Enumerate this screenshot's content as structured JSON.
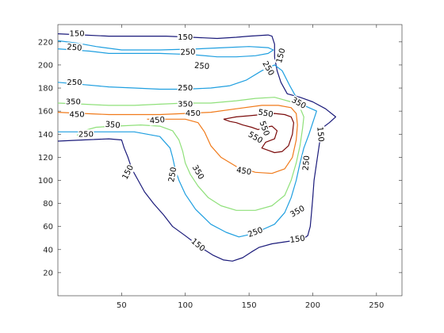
{
  "chart_data": {
    "type": "contour",
    "title": "",
    "xlabel": "",
    "ylabel": "",
    "xlim": [
      0,
      270
    ],
    "ylim": [
      0,
      235
    ],
    "grid": false,
    "x_ticks": [
      "50",
      "100",
      "150",
      "200",
      "250"
    ],
    "y_ticks": [
      "20",
      "40",
      "60",
      "80",
      "100",
      "120",
      "140",
      "160",
      "180",
      "200",
      "220"
    ],
    "levels": [
      150,
      250,
      350,
      450,
      550
    ],
    "level_colors": {
      "150": "#1a1a7a",
      "250": "#1f9fe0",
      "350": "#8fe07a",
      "450": "#f07a1a",
      "550": "#7a0a0a"
    },
    "contours": [
      {
        "level": 150,
        "paths": [
          [
            [
              0,
              134
            ],
            [
              20,
              135
            ],
            [
              40,
              136
            ],
            [
              50,
              135
            ],
            [
              52,
              128
            ],
            [
              55,
              120
            ],
            [
              58,
              110
            ],
            [
              63,
              100
            ],
            [
              68,
              90
            ],
            [
              75,
              80
            ],
            [
              83,
              70
            ],
            [
              90,
              60
            ],
            [
              100,
              52
            ],
            [
              112,
              42
            ],
            [
              122,
              35
            ],
            [
              130,
              31
            ],
            [
              137,
              30
            ],
            [
              145,
              33
            ],
            [
              152,
              38
            ],
            [
              158,
              42
            ],
            [
              168,
              45
            ],
            [
              180,
              47
            ],
            [
              192,
              49
            ],
            [
              196,
              52
            ],
            [
              198,
              60
            ],
            [
              199,
              72
            ],
            [
              200,
              85
            ],
            [
              201,
              100
            ],
            [
              203,
              115
            ],
            [
              205,
              130
            ],
            [
              207,
              145
            ],
            [
              213,
              150
            ],
            [
              218,
              155
            ],
            [
              210,
              162
            ],
            [
              200,
              168
            ],
            [
              190,
              172
            ],
            [
              180,
              175
            ],
            [
              175,
              185
            ],
            [
              172,
              195
            ],
            [
              170,
              207
            ],
            [
              170,
              218
            ],
            [
              168,
              225
            ],
            [
              165,
              226
            ],
            [
              150,
              225
            ],
            [
              140,
              224
            ],
            [
              125,
              223
            ],
            [
              105,
              224
            ],
            [
              85,
              225
            ],
            [
              60,
              225
            ],
            [
              40,
              225
            ],
            [
              20,
              226
            ],
            [
              0,
              227
            ]
          ]
        ],
        "labels": [
          {
            "text": "150",
            "x": 15,
            "y": 227,
            "angle": 0
          },
          {
            "text": "150",
            "x": 100,
            "y": 224,
            "angle": 0
          },
          {
            "text": "150",
            "x": 175,
            "y": 208,
            "angle": 75
          },
          {
            "text": "150",
            "x": 55,
            "y": 107,
            "angle": 62
          },
          {
            "text": "150",
            "x": 110,
            "y": 44,
            "angle": -40
          },
          {
            "text": "150",
            "x": 188,
            "y": 49,
            "angle": 8
          },
          {
            "text": "150",
            "x": 206,
            "y": 140,
            "angle": -85
          }
        ]
      },
      {
        "level": 250,
        "paths": [
          [
            [
              0,
              221
            ],
            [
              15,
              219
            ],
            [
              30,
              216
            ],
            [
              50,
              213
            ],
            [
              80,
              213
            ],
            [
              110,
              214
            ],
            [
              130,
              215
            ],
            [
              150,
              216
            ],
            [
              165,
              215
            ],
            [
              169,
              213
            ],
            [
              165,
              210
            ],
            [
              155,
              208
            ],
            [
              140,
              207
            ],
            [
              125,
              207
            ],
            [
              105,
              209
            ],
            [
              80,
              210
            ],
            [
              55,
              210
            ],
            [
              40,
              210
            ],
            [
              25,
              212
            ],
            [
              0,
              214
            ]
          ],
          [
            [
              0,
              185
            ],
            [
              20,
              183
            ],
            [
              40,
              181
            ],
            [
              60,
              180
            ],
            [
              80,
              179
            ],
            [
              100,
              179
            ],
            [
              120,
              180
            ],
            [
              135,
              182
            ],
            [
              148,
              187
            ],
            [
              160,
              195
            ],
            [
              170,
              200
            ],
            [
              176,
              195
            ],
            [
              182,
              182
            ],
            [
              188,
              170
            ],
            [
              195,
              164
            ],
            [
              203,
              160
            ],
            [
              200,
              150
            ],
            [
              197,
              140
            ],
            [
              193,
              128
            ],
            [
              190,
              115
            ],
            [
              187,
              100
            ],
            [
              183,
              85
            ],
            [
              178,
              72
            ],
            [
              170,
              62
            ],
            [
              160,
              57
            ],
            [
              150,
              53
            ],
            [
              142,
              51
            ],
            [
              132,
              55
            ],
            [
              120,
              62
            ],
            [
              108,
              75
            ],
            [
              100,
              88
            ],
            [
              95,
              100
            ],
            [
              92,
              110
            ],
            [
              90,
              120
            ],
            [
              88,
              128
            ],
            [
              80,
              138
            ],
            [
              60,
              142
            ],
            [
              40,
              142
            ],
            [
              20,
              142
            ],
            [
              0,
              142
            ]
          ]
        ],
        "labels": [
          {
            "text": "250",
            "x": 13,
            "y": 215,
            "angle": -5
          },
          {
            "text": "250",
            "x": 102,
            "y": 211,
            "angle": 2
          },
          {
            "text": "250",
            "x": 113,
            "y": 199,
            "angle": -5
          },
          {
            "text": "250",
            "x": 13,
            "y": 185,
            "angle": 0
          },
          {
            "text": "250",
            "x": 100,
            "y": 180,
            "angle": 0
          },
          {
            "text": "250",
            "x": 165,
            "y": 197,
            "angle": -60
          },
          {
            "text": "250",
            "x": 195,
            "y": 115,
            "angle": 85
          },
          {
            "text": "250",
            "x": 155,
            "y": 55,
            "angle": 20
          },
          {
            "text": "250",
            "x": 90,
            "y": 105,
            "angle": 80
          },
          {
            "text": "250",
            "x": 22,
            "y": 140,
            "angle": 0
          }
        ]
      },
      {
        "level": 350,
        "paths": [
          [
            [
              0,
              167
            ],
            [
              20,
              166
            ],
            [
              40,
              165
            ],
            [
              60,
              165
            ],
            [
              80,
              166
            ],
            [
              100,
              167
            ],
            [
              120,
              167
            ],
            [
              140,
              169
            ],
            [
              155,
              171
            ],
            [
              170,
              172
            ],
            [
              183,
              168
            ],
            [
              190,
              163
            ],
            [
              193,
              155
            ],
            [
              192,
              145
            ],
            [
              190,
              130
            ],
            [
              187,
              115
            ],
            [
              183,
              100
            ],
            [
              178,
              87
            ],
            [
              168,
              78
            ],
            [
              155,
              74
            ],
            [
              140,
              74
            ],
            [
              128,
              78
            ],
            [
              118,
              85
            ],
            [
              110,
              95
            ],
            [
              104,
              105
            ],
            [
              100,
              115
            ],
            [
              98,
              125
            ],
            [
              95,
              135
            ],
            [
              90,
              143
            ],
            [
              80,
              147
            ],
            [
              65,
              148
            ],
            [
              45,
              147
            ],
            [
              30,
              146
            ],
            [
              20,
              143
            ],
            [
              15,
              139
            ]
          ]
        ],
        "labels": [
          {
            "text": "350",
            "x": 12,
            "y": 168,
            "angle": 0
          },
          {
            "text": "350",
            "x": 100,
            "y": 166,
            "angle": 0
          },
          {
            "text": "350",
            "x": 189,
            "y": 167,
            "angle": -30
          },
          {
            "text": "350",
            "x": 110,
            "y": 107,
            "angle": -60
          },
          {
            "text": "350",
            "x": 188,
            "y": 73,
            "angle": 30
          },
          {
            "text": "350",
            "x": 43,
            "y": 148,
            "angle": -5
          }
        ]
      },
      {
        "level": 450,
        "paths": [
          [
            [
              0,
              159
            ],
            [
              20,
              158
            ],
            [
              40,
              157
            ],
            [
              60,
              157
            ],
            [
              80,
              157
            ],
            [
              100,
              158
            ],
            [
              120,
              159
            ],
            [
              140,
              162
            ],
            [
              160,
              165
            ],
            [
              173,
              165
            ],
            [
              183,
              163
            ],
            [
              187,
              158
            ],
            [
              188,
              148
            ],
            [
              187,
              135
            ],
            [
              184,
              120
            ],
            [
              178,
              110
            ],
            [
              168,
              106
            ],
            [
              155,
              107
            ],
            [
              140,
              112
            ],
            [
              128,
              120
            ],
            [
              120,
              130
            ],
            [
              115,
              142
            ],
            [
              110,
              150
            ],
            [
              100,
              153
            ],
            [
              85,
              153
            ],
            [
              70,
              153
            ]
          ]
        ],
        "labels": [
          {
            "text": "450",
            "x": 15,
            "y": 157,
            "angle": 0
          },
          {
            "text": "450",
            "x": 106,
            "y": 158,
            "angle": 0
          },
          {
            "text": "450",
            "x": 78,
            "y": 152,
            "angle": 5
          },
          {
            "text": "450",
            "x": 146,
            "y": 108,
            "angle": -10
          }
        ]
      },
      {
        "level": 550,
        "paths": [
          [
            [
              130,
              153
            ],
            [
              140,
              155
            ],
            [
              150,
              156
            ],
            [
              160,
              157
            ],
            [
              170,
              158
            ],
            [
              178,
              157
            ],
            [
              183,
              155
            ],
            [
              185,
              150
            ],
            [
              184,
              140
            ],
            [
              181,
              130
            ],
            [
              176,
              125
            ],
            [
              170,
              124
            ],
            [
              165,
              126
            ],
            [
              160,
              128
            ],
            [
              163,
              133
            ],
            [
              170,
              136
            ],
            [
              172,
              143
            ],
            [
              168,
              147
            ],
            [
              163,
              146
            ],
            [
              157,
              144
            ],
            [
              152,
              146
            ],
            [
              145,
              148
            ],
            [
              140,
              150
            ],
            [
              135,
              151
            ],
            [
              130,
              153
            ]
          ]
        ],
        "labels": [
          {
            "text": "550",
            "x": 163,
            "y": 158,
            "angle": -10
          },
          {
            "text": "550",
            "x": 155,
            "y": 137,
            "angle": -30
          },
          {
            "text": "550",
            "x": 162,
            "y": 145,
            "angle": -70
          }
        ]
      }
    ]
  }
}
